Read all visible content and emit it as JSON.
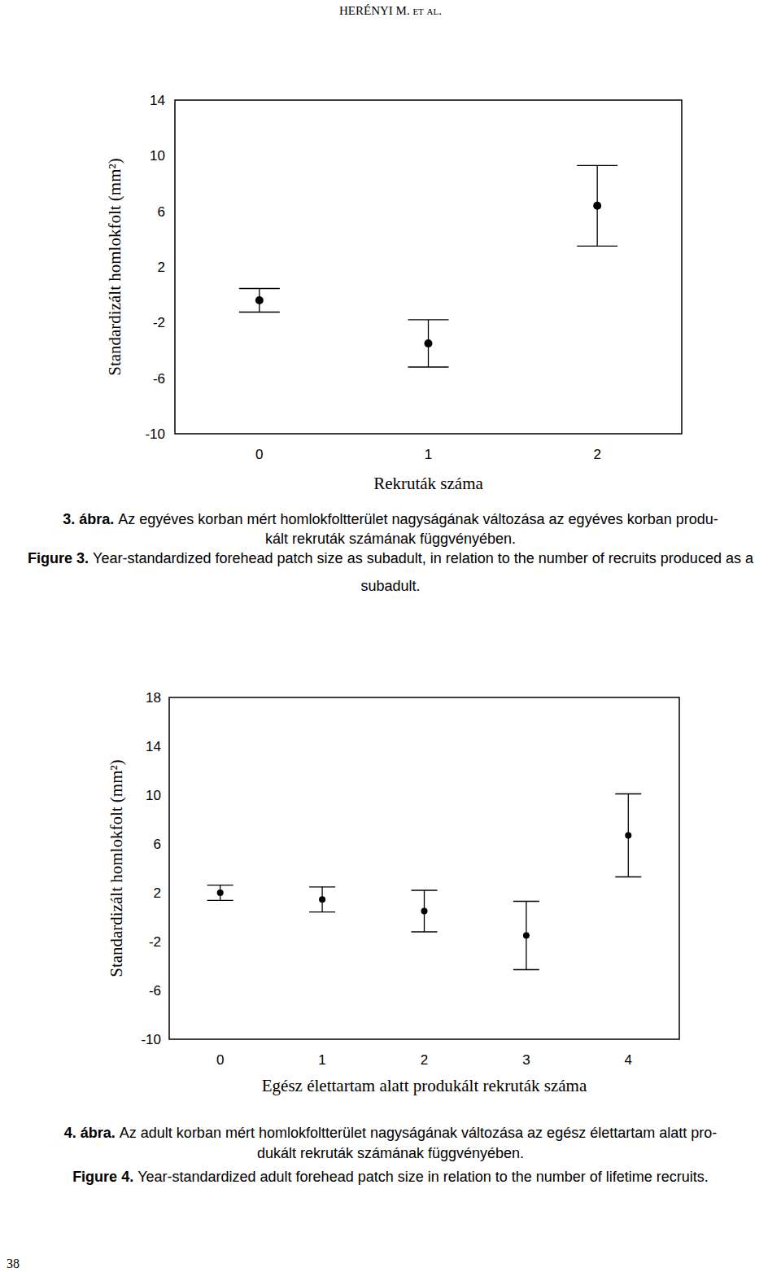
{
  "header": "HERÉNYI M. et al.",
  "page_number": "38",
  "chart_data": [
    {
      "type": "errorbar",
      "categories": [
        "0",
        "1",
        "2"
      ],
      "values": [
        -0.4,
        -3.5,
        6.4
      ],
      "errors": [
        0.85,
        1.7,
        2.9
      ],
      "ylim": [
        -10,
        14
      ],
      "yticks": [
        14,
        10,
        6,
        2,
        -2,
        -6,
        -10
      ],
      "x_label": "Rekruták száma",
      "y_label": "Standardizált homlokfolt (mm²)",
      "color": "#000000",
      "marker": "circle",
      "grid": false
    },
    {
      "type": "errorbar",
      "categories": [
        "0",
        "1",
        "2",
        "3",
        "4"
      ],
      "values": [
        2.0,
        1.45,
        0.5,
        -1.5,
        6.7
      ],
      "errors": [
        0.63,
        1.03,
        1.7,
        2.8,
        3.4
      ],
      "ylim": [
        -10,
        18
      ],
      "yticks": [
        18,
        14,
        10,
        6,
        2,
        -2,
        -6,
        -10
      ],
      "x_label": "Egész élettartam alatt produkált rekruták száma",
      "y_label": "Standardizált homlokfolt (mm²)",
      "color": "#000000",
      "marker": "circle",
      "grid": false
    }
  ],
  "captions": [
    {
      "hu": {
        "label": "3. ábra.",
        "lines": [
          "Az egyéves korban mért homlokfoltterület nagyságának változása az egyéves korban produ-",
          "kált rekruták számának függvényében."
        ]
      },
      "en": {
        "label": "Figure 3.",
        "lines": [
          "Year-standardized forehead patch size as subadult, in relation to the number of recruits produced as a",
          "subadult."
        ]
      }
    },
    {
      "hu": {
        "label": "4. ábra.",
        "lines": [
          "Az adult korban mért homlokfoltterület nagyságának változása az egész élettartam alatt pro-",
          "dukált rekruták számának függvényében."
        ]
      },
      "en": {
        "label": "Figure 4.",
        "lines": [
          "Year-standardized adult forehead patch size in relation to the number of lifetime recruits."
        ]
      }
    }
  ]
}
